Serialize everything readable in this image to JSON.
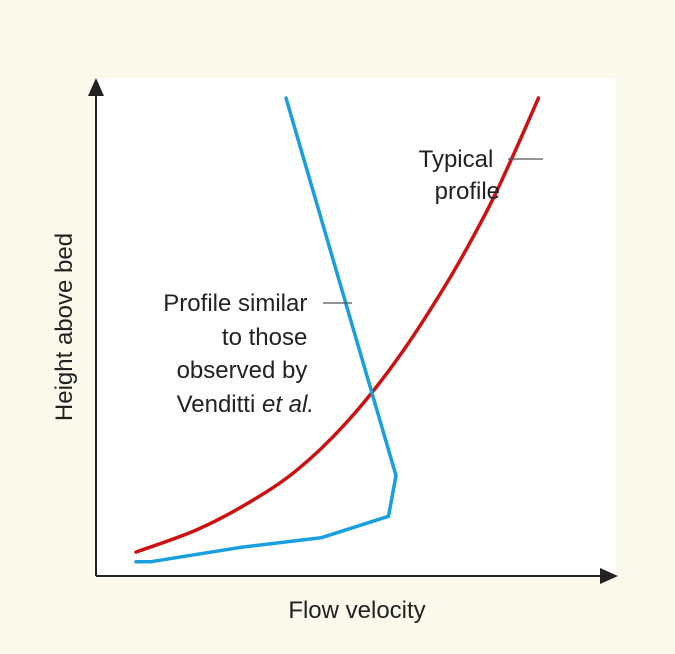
{
  "chart_data": {
    "type": "line",
    "xlabel": "Flow velocity",
    "ylabel": "Height above bed",
    "xlim": [
      0,
      10
    ],
    "ylim": [
      0,
      10
    ],
    "grid": false,
    "legend": "none",
    "series": [
      {
        "colour": "#cc1111",
        "x": [
          0.8,
          2.0,
          3.0,
          4.0,
          5.0,
          6.0,
          7.0,
          7.8,
          8.3,
          8.85
        ],
        "y": [
          0.5,
          0.96,
          1.5,
          2.2,
          3.2,
          4.5,
          6.1,
          7.6,
          8.7,
          10.0
        ]
      },
      {
        "colour": "#1a9fde",
        "x": [
          0.8,
          1.1,
          2.9,
          4.5,
          5.85,
          6.0,
          3.8
        ],
        "y": [
          0.3,
          0.3,
          0.6,
          0.8,
          1.25,
          2.1,
          10.0
        ]
      }
    ],
    "annotations": [
      {
        "lines": [
          "Typical",
          "profile"
        ],
        "target_series": 0
      },
      {
        "lines": [
          "Profile similar",
          "to those",
          "observed by",
          "Venditti "
        ],
        "italic": "et al.",
        "target_series": 1
      }
    ]
  }
}
